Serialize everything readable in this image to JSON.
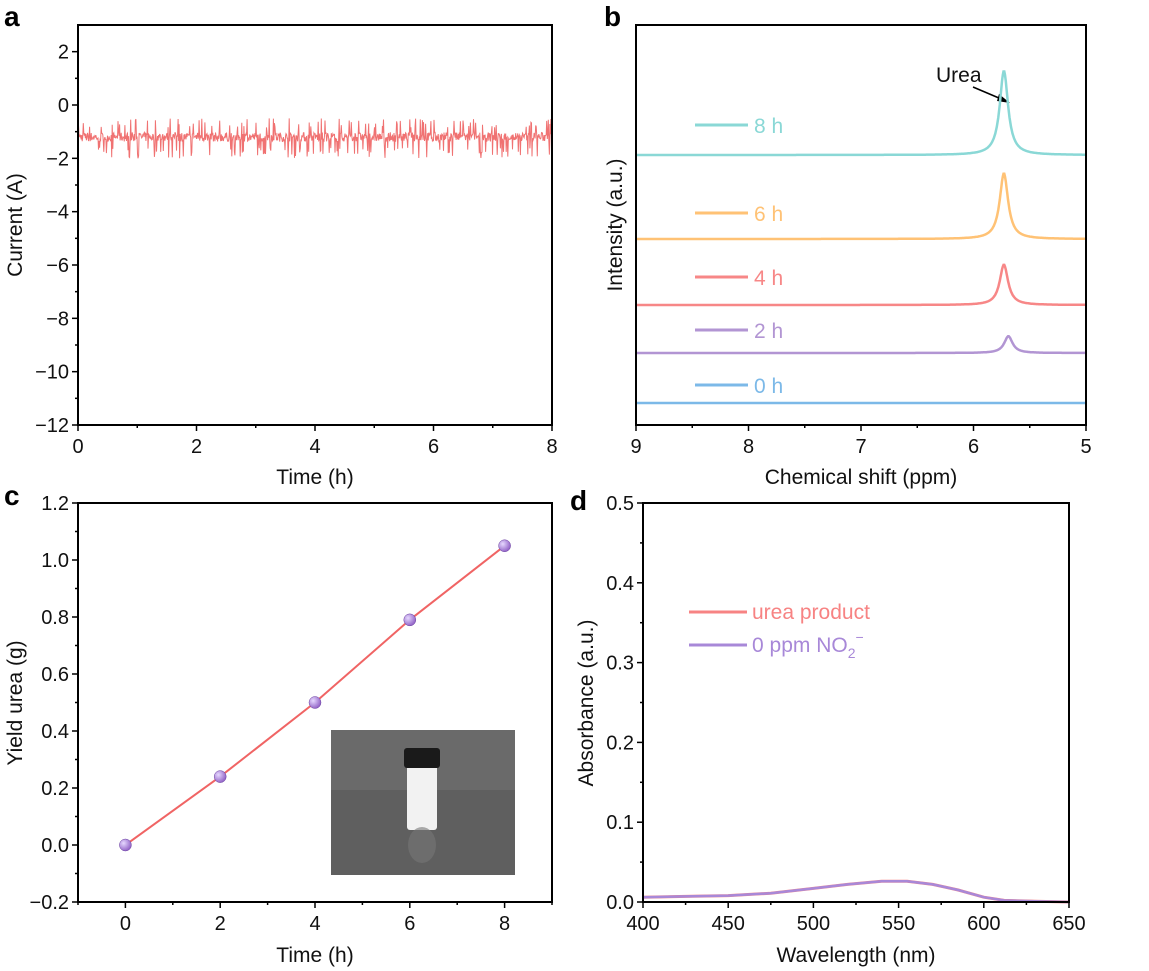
{
  "chart_data": [
    {
      "panel": "a",
      "type": "line",
      "xlabel": "Time (h)",
      "ylabel": "Current (A)",
      "xlim": [
        0,
        8
      ],
      "ylim": [
        -12,
        3
      ],
      "xticks": [
        "0",
        "2",
        "4",
        "6",
        "8"
      ],
      "yticks": [
        "−12",
        "−10",
        "−8",
        "−6",
        "−4",
        "−2",
        "0",
        "2"
      ],
      "series": [
        {
          "name": "current",
          "color": "#f07272",
          "mean": -1.2,
          "min": -2.0,
          "max": -0.5,
          "description": "noisy chronoamperometric trace"
        }
      ]
    },
    {
      "panel": "b",
      "type": "line",
      "xlabel": "Chemical shift (ppm)",
      "ylabel": "Intensity (a.u.)",
      "xlim": [
        9,
        5
      ],
      "xticks": [
        "9",
        "8",
        "7",
        "6",
        "5"
      ],
      "annotation": "Urea",
      "peak_ppm": 5.73,
      "series": [
        {
          "name": "8 h",
          "color": "#8ad8d6",
          "offset": 4,
          "peak_height": 1.0
        },
        {
          "name": "6 h",
          "color": "#ffc275",
          "offset": 3,
          "peak_height": 0.78
        },
        {
          "name": "4 h",
          "color": "#f78787",
          "offset": 2,
          "peak_height": 0.48
        },
        {
          "name": "2 h",
          "color": "#b295d3",
          "offset": 1,
          "peak_height": 0.2
        },
        {
          "name": "0 h",
          "color": "#7cb9e8",
          "offset": 0,
          "peak_height": 0.0
        }
      ]
    },
    {
      "panel": "c",
      "type": "line",
      "xlabel": "Time (h)",
      "ylabel": "Yield urea (g)",
      "xlim": [
        -1,
        9
      ],
      "ylim": [
        -0.2,
        1.2
      ],
      "xticks": [
        "0",
        "2",
        "4",
        "6",
        "8"
      ],
      "yticks": [
        "−0.2",
        "0.0",
        "0.2",
        "0.4",
        "0.6",
        "0.8",
        "1.0",
        "1.2"
      ],
      "x": [
        0,
        2,
        4,
        6,
        8
      ],
      "y": [
        0.0,
        0.24,
        0.5,
        0.79,
        1.05
      ],
      "line_color": "#f06464",
      "marker_color": "#9466c8",
      "inset": "photo of vial containing white urea powder"
    },
    {
      "panel": "d",
      "type": "line",
      "xlabel": "Wavelength (nm)",
      "ylabel": "Absorbance (a.u.)",
      "xlim": [
        400,
        650
      ],
      "ylim": [
        0,
        0.5
      ],
      "xticks": [
        "400",
        "450",
        "500",
        "550",
        "600",
        "650"
      ],
      "yticks": [
        "0.0",
        "0.1",
        "0.2",
        "0.3",
        "0.4",
        "0.5"
      ],
      "x": [
        400,
        425,
        450,
        475,
        500,
        520,
        540,
        555,
        570,
        585,
        600,
        612,
        630,
        650
      ],
      "series": [
        {
          "name": "urea product",
          "color": "#f78383",
          "y": [
            0.006,
            0.007,
            0.008,
            0.011,
            0.017,
            0.022,
            0.026,
            0.026,
            0.022,
            0.015,
            0.006,
            0.002,
            0.001,
            0.0
          ]
        },
        {
          "name": "0 ppm NO2−",
          "label_main": "0 ppm NO",
          "label_sub": "2",
          "label_sup": "−",
          "color": "#a888d8",
          "y": [
            0.006,
            0.007,
            0.008,
            0.011,
            0.017,
            0.022,
            0.026,
            0.026,
            0.022,
            0.015,
            0.006,
            0.002,
            0.001,
            0.0
          ]
        }
      ]
    }
  ],
  "panel_labels": [
    "a",
    "b",
    "c",
    "d"
  ]
}
